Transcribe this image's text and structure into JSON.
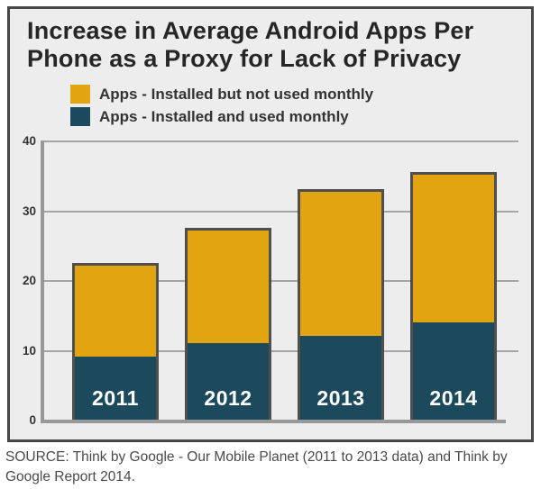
{
  "title": {
    "line1": "Increase in Average Android Apps Per",
    "line2": "Phone as a Proxy for Lack of Privacy"
  },
  "legend": {
    "items": [
      {
        "label": "Apps - Installed but not used monthly",
        "color": "#E3A412"
      },
      {
        "label": "Apps - Installed and used monthly",
        "color": "#1D495C"
      }
    ]
  },
  "source": "SOURCE: Think by Google - Our Mobile Planet (2011 to 2013 data) and Think by Google Report 2014.",
  "colors": {
    "orange": "#E3A412",
    "teal": "#1D495C",
    "box_background": "#EDEDED",
    "box_border": "#474747",
    "bar_border": "#4F4F4F",
    "gridline": "#A5A5A5",
    "axis": "#989898",
    "title_text": "#262626",
    "bar_label_text": "#FFFFFF"
  },
  "chart_data": {
    "type": "bar",
    "stacked": true,
    "title": "Increase in Average Android Apps Per Phone as a Proxy for Lack of Privacy",
    "categories": [
      "2011",
      "2012",
      "2013",
      "2014"
    ],
    "series": [
      {
        "name": "Apps - Installed and used monthly",
        "color": "#1D495C",
        "values": [
          9,
          11,
          12,
          14
        ]
      },
      {
        "name": "Apps - Installed but not used monthly",
        "color": "#E3A412",
        "values": [
          13.5,
          16.5,
          21,
          21.5
        ]
      }
    ],
    "totals": [
      22.5,
      27.5,
      33,
      35.5
    ],
    "xlabel": "",
    "ylabel": "",
    "ylim": [
      0,
      40
    ],
    "yticks": [
      0,
      10,
      20,
      30,
      40
    ],
    "grid": true,
    "legend_position": "top-left",
    "category_labels_inside_bars": true
  }
}
